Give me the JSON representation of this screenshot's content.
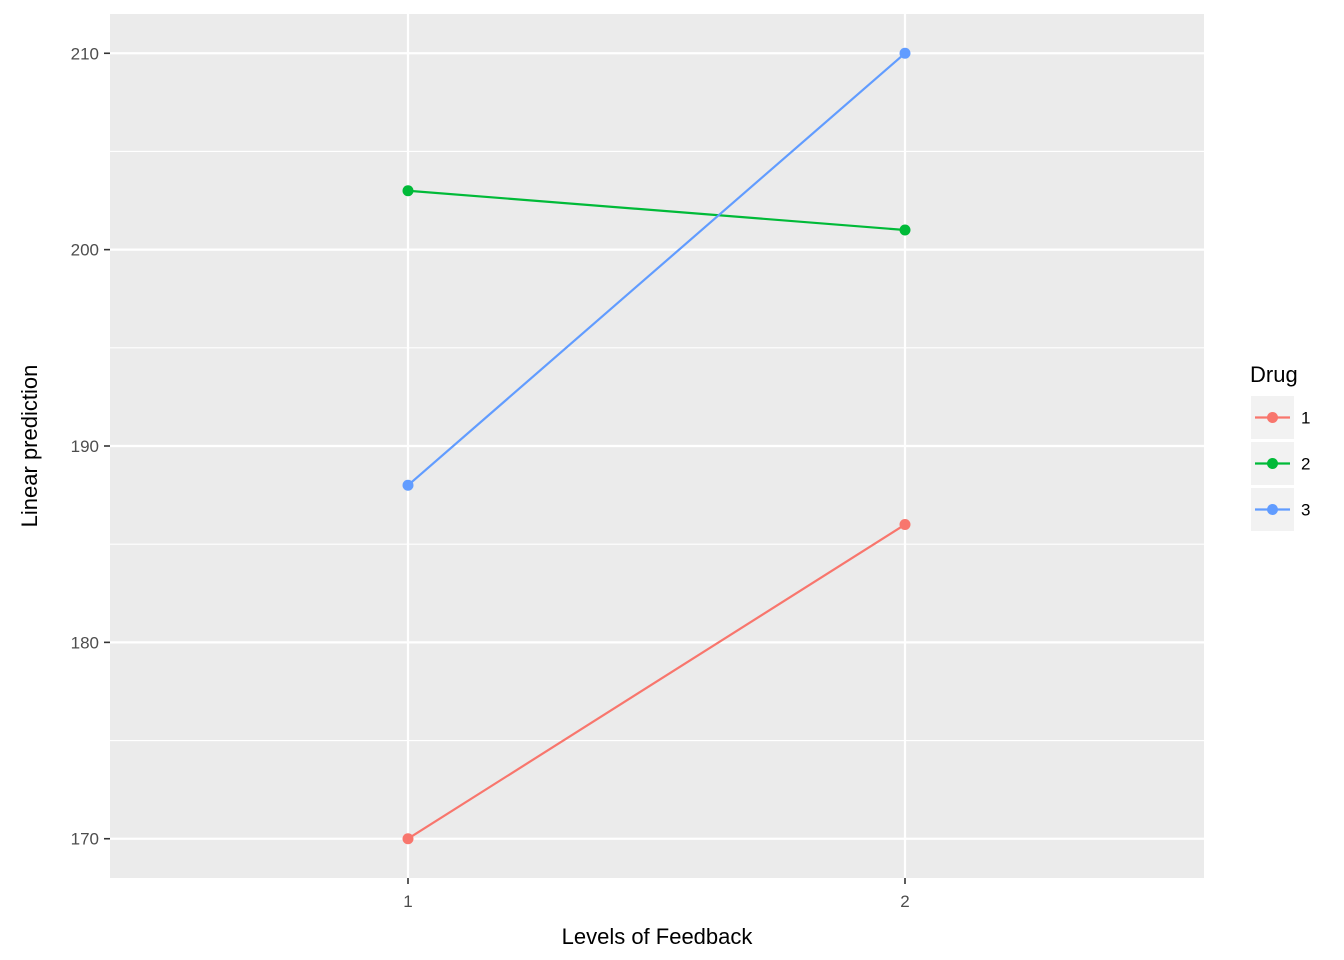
{
  "chart_data": {
    "type": "line",
    "x": [
      "1",
      "2"
    ],
    "xlabel": "Levels of Feedback",
    "ylabel": "Linear prediction",
    "ylim": [
      168,
      212
    ],
    "y_ticks": [
      170,
      180,
      190,
      200,
      210
    ],
    "y_minor_ticks": [
      175,
      185,
      195,
      205
    ],
    "grid": true,
    "legend": {
      "title": "Drug",
      "position": "right"
    },
    "series": [
      {
        "name": "1",
        "color": "#F8766D",
        "values": [
          170,
          186
        ]
      },
      {
        "name": "2",
        "color": "#00BA38",
        "values": [
          203,
          201
        ]
      },
      {
        "name": "3",
        "color": "#619CFF",
        "values": [
          188,
          210
        ]
      }
    ]
  }
}
